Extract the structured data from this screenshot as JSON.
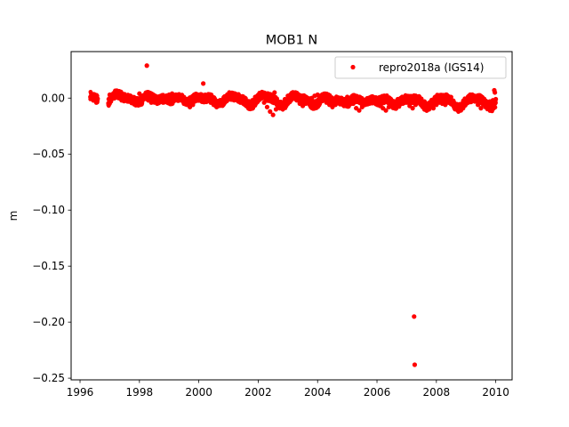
{
  "chart_data": {
    "type": "scatter",
    "title": "MOB1 N",
    "xlabel": "",
    "ylabel": "m",
    "xlim": [
      1995.7,
      2010.55
    ],
    "ylim": [
      -0.2515,
      0.0415
    ],
    "xticks": [
      1996,
      1998,
      2000,
      2002,
      2004,
      2006,
      2008,
      2010
    ],
    "yticks": [
      0.0,
      -0.05,
      -0.1,
      -0.15,
      -0.2,
      -0.25
    ],
    "ytick_labels": [
      "0.00",
      "−0.05",
      "−0.10",
      "−0.15",
      "−0.20",
      "−0.25"
    ],
    "grid": false,
    "legend_position": "top-right",
    "series": [
      {
        "name": "repro2018a (IGS14)",
        "color": "#ff0000",
        "marker": "circle",
        "points": [
          [
            1996.35,
            0.001
          ],
          [
            1996.4,
            0.002
          ],
          [
            1996.45,
            0.0
          ],
          [
            1996.5,
            -0.002
          ],
          [
            1996.55,
            -0.004
          ],
          [
            1997.0,
            0.003
          ],
          [
            1997.1,
            0.002
          ],
          [
            1997.2,
            0.001
          ],
          [
            1997.3,
            0.0
          ],
          [
            1997.4,
            -0.002
          ],
          [
            1997.5,
            0.001
          ],
          [
            1997.6,
            -0.003
          ],
          [
            1997.7,
            0.002
          ],
          [
            1997.8,
            0.0
          ],
          [
            1997.9,
            -0.004
          ],
          [
            1998.0,
            0.004
          ],
          [
            1998.1,
            0.001
          ],
          [
            1998.2,
            0.002
          ],
          [
            1998.25,
            0.029
          ],
          [
            1998.3,
            -0.002
          ],
          [
            1998.4,
            -0.004
          ],
          [
            1998.5,
            -0.003
          ],
          [
            1998.6,
            -0.005
          ],
          [
            1998.7,
            -0.003
          ],
          [
            1998.8,
            -0.004
          ],
          [
            1998.9,
            0.001
          ],
          [
            1999.0,
            0.003
          ],
          [
            1999.1,
            0.004
          ],
          [
            1999.2,
            0.002
          ],
          [
            1999.3,
            0.0
          ],
          [
            1999.4,
            -0.002
          ],
          [
            1999.5,
            -0.005
          ],
          [
            1999.6,
            -0.006
          ],
          [
            1999.7,
            -0.008
          ],
          [
            1999.8,
            -0.006
          ],
          [
            1999.9,
            -0.002
          ],
          [
            2000.0,
            0.002
          ],
          [
            2000.1,
            0.003
          ],
          [
            2000.15,
            0.013
          ],
          [
            2000.2,
            0.001
          ],
          [
            2000.3,
            -0.002
          ],
          [
            2000.4,
            -0.004
          ],
          [
            2000.5,
            -0.006
          ],
          [
            2000.6,
            -0.008
          ],
          [
            2000.7,
            -0.006
          ],
          [
            2000.8,
            -0.004
          ],
          [
            2000.9,
            -0.001
          ],
          [
            2001.0,
            0.002
          ],
          [
            2001.1,
            0.003
          ],
          [
            2001.2,
            0.001
          ],
          [
            2001.3,
            -0.002
          ],
          [
            2001.4,
            -0.004
          ],
          [
            2001.5,
            -0.005
          ],
          [
            2001.6,
            -0.007
          ],
          [
            2001.7,
            -0.004
          ],
          [
            2001.8,
            -0.002
          ],
          [
            2001.9,
            0.001
          ],
          [
            2002.0,
            0.002
          ],
          [
            2002.1,
            0.0
          ],
          [
            2002.2,
            -0.004
          ],
          [
            2002.3,
            -0.008
          ],
          [
            2002.4,
            -0.012
          ],
          [
            2002.5,
            -0.015
          ],
          [
            2002.55,
            0.005
          ],
          [
            2002.6,
            -0.01
          ],
          [
            2002.7,
            -0.008
          ],
          [
            2002.8,
            -0.004
          ],
          [
            2002.9,
            -0.001
          ],
          [
            2003.0,
            0.002
          ],
          [
            2003.1,
            0.003
          ],
          [
            2003.2,
            0.001
          ],
          [
            2003.3,
            -0.002
          ],
          [
            2003.4,
            -0.005
          ],
          [
            2003.5,
            -0.007
          ],
          [
            2003.6,
            -0.005
          ],
          [
            2003.7,
            -0.003
          ],
          [
            2003.8,
            0.0
          ],
          [
            2003.9,
            0.002
          ],
          [
            2004.0,
            0.003
          ],
          [
            2004.1,
            0.002
          ],
          [
            2004.2,
            -0.001
          ],
          [
            2004.3,
            -0.004
          ],
          [
            2004.4,
            -0.006
          ],
          [
            2004.5,
            -0.008
          ],
          [
            2004.6,
            -0.006
          ],
          [
            2004.7,
            -0.004
          ],
          [
            2004.8,
            -0.002
          ],
          [
            2004.9,
            -0.001
          ],
          [
            2005.0,
            0.001
          ],
          [
            2005.1,
            -0.002
          ],
          [
            2005.2,
            -0.005
          ],
          [
            2005.3,
            -0.009
          ],
          [
            2005.4,
            -0.011
          ],
          [
            2005.5,
            -0.008
          ],
          [
            2005.6,
            -0.005
          ],
          [
            2005.7,
            -0.003
          ],
          [
            2005.8,
            0.001
          ],
          [
            2005.9,
            -0.001
          ],
          [
            2006.0,
            -0.004
          ],
          [
            2006.1,
            -0.007
          ],
          [
            2006.2,
            -0.009
          ],
          [
            2006.3,
            -0.011
          ],
          [
            2006.4,
            -0.008
          ],
          [
            2006.5,
            -0.005
          ],
          [
            2006.6,
            -0.003
          ],
          [
            2006.7,
            -0.001
          ],
          [
            2006.8,
            0.0
          ],
          [
            2006.9,
            -0.002
          ],
          [
            2007.0,
            -0.004
          ],
          [
            2007.1,
            -0.007
          ],
          [
            2007.2,
            -0.009
          ],
          [
            2007.25,
            -0.195
          ],
          [
            2007.27,
            -0.238
          ],
          [
            2007.3,
            -0.006
          ],
          [
            2007.4,
            -0.004
          ],
          [
            2007.5,
            -0.002
          ],
          [
            2007.6,
            -0.003
          ],
          [
            2007.7,
            -0.005
          ],
          [
            2007.8,
            -0.007
          ],
          [
            2007.9,
            -0.009
          ],
          [
            2008.0,
            -0.006
          ],
          [
            2008.1,
            -0.004
          ],
          [
            2008.2,
            -0.005
          ],
          [
            2008.3,
            -0.006
          ],
          [
            2008.4,
            -0.004
          ],
          [
            2008.5,
            -0.003
          ],
          [
            2008.6,
            -0.005
          ],
          [
            2008.7,
            -0.008
          ],
          [
            2008.8,
            -0.011
          ],
          [
            2008.9,
            -0.009
          ],
          [
            2009.0,
            -0.005
          ],
          [
            2009.1,
            -0.002
          ],
          [
            2009.2,
            -0.001
          ],
          [
            2009.3,
            -0.003
          ],
          [
            2009.4,
            -0.006
          ],
          [
            2009.5,
            -0.009
          ],
          [
            2009.6,
            -0.006
          ],
          [
            2009.7,
            -0.004
          ],
          [
            2009.8,
            -0.003
          ],
          [
            2009.9,
            -0.002
          ],
          [
            2009.95,
            0.007
          ],
          [
            2009.97,
            0.005
          ],
          [
            2010.0,
            -0.001
          ]
        ]
      }
    ]
  }
}
